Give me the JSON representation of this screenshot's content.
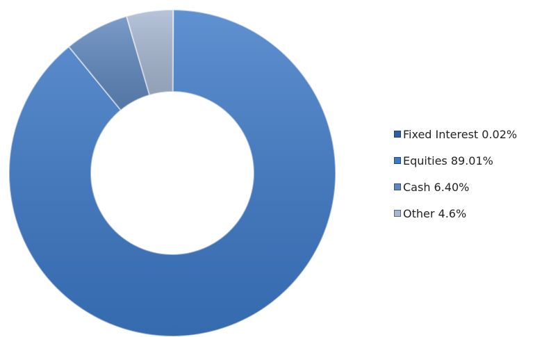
{
  "chart_data": {
    "type": "pie",
    "title": "",
    "categories": [
      "Fixed Interest",
      "Equities",
      "Cash",
      "Other"
    ],
    "values": [
      0.02,
      89.01,
      6.4,
      4.6
    ],
    "series": [
      {
        "values": [
          0.02,
          89.01,
          6.4,
          4.6
        ]
      }
    ],
    "legend_labels": [
      "Fixed Interest 0.02%",
      "Equities 89.01%",
      "Cash 6.40%",
      "Other 4.6%"
    ],
    "colors": [
      "#2f5fa3",
      "#3d79c7",
      "#5f87bd",
      "#a7b7d1"
    ],
    "legend_position": "right",
    "grid": false,
    "donut": true
  }
}
